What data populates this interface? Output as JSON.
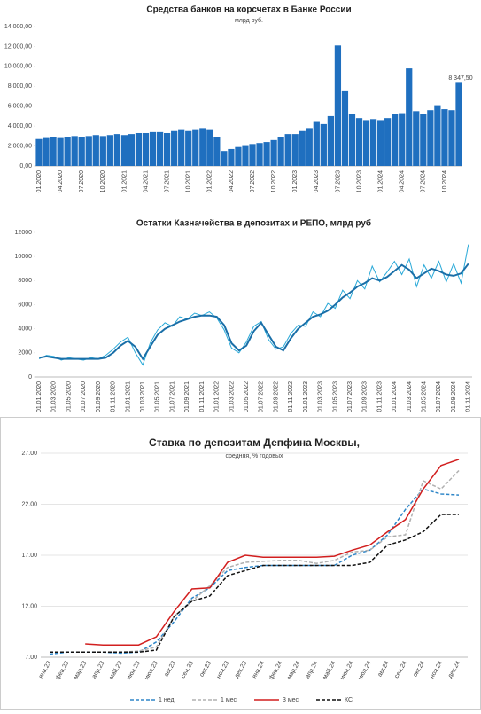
{
  "chart_data": [
    {
      "type": "bar",
      "title": "Средства банков на корсчетах в Банке России",
      "subtitle": "млрд руб.",
      "color": "#1f6fbf",
      "grid": false,
      "categories": [
        "01.2020",
        null,
        null,
        "04.2020",
        null,
        null,
        "07.2020",
        null,
        null,
        "10.2020",
        null,
        null,
        "01.2021",
        null,
        null,
        "04.2021",
        null,
        null,
        "07.2021",
        null,
        null,
        "10.2021",
        null,
        null,
        "01.2022",
        null,
        null,
        "04.2022",
        null,
        null,
        "07.2022",
        null,
        null,
        "10.2022",
        null,
        null,
        "01.2023",
        null,
        null,
        "04.2023",
        null,
        null,
        "07.2023",
        null,
        null,
        "10.2023",
        null,
        null,
        "01.2024",
        null,
        null,
        "04.2024",
        null,
        null,
        "07.2024",
        null,
        null,
        "10.2024",
        null,
        null
      ],
      "values": [
        2700,
        2800,
        2900,
        2800,
        2900,
        3000,
        2900,
        3000,
        3100,
        3000,
        3100,
        3200,
        3100,
        3200,
        3300,
        3300,
        3400,
        3400,
        3300,
        3500,
        3600,
        3500,
        3600,
        3800,
        3600,
        2900,
        1500,
        1700,
        1900,
        2000,
        2200,
        2300,
        2400,
        2600,
        2900,
        3200,
        3200,
        3500,
        3800,
        4500,
        4200,
        5000,
        12100,
        7500,
        5200,
        4800,
        4600,
        4700,
        4600,
        4800,
        5200,
        5300,
        9800,
        5500,
        5200,
        5600,
        6100,
        5700,
        5600,
        8347.5
      ],
      "value_labels": [
        null,
        null,
        null,
        null,
        null,
        null,
        null,
        null,
        null,
        null,
        null,
        null,
        null,
        null,
        null,
        null,
        null,
        null,
        null,
        null,
        null,
        null,
        null,
        null,
        null,
        null,
        null,
        null,
        null,
        null,
        null,
        null,
        null,
        null,
        null,
        null,
        null,
        null,
        null,
        null,
        null,
        null,
        null,
        null,
        null,
        null,
        null,
        null,
        null,
        null,
        null,
        null,
        null,
        null,
        null,
        null,
        null,
        null,
        null,
        "8 347,50"
      ],
      "ylim": [
        0,
        14000
      ],
      "yticks": [
        {
          "value": 0,
          "label": "0,00"
        },
        {
          "value": 2000,
          "label": "2 000,00"
        },
        {
          "value": 4000,
          "label": "4 000,00"
        },
        {
          "value": 6000,
          "label": "6 000,00"
        },
        {
          "value": 8000,
          "label": "8 000,00"
        },
        {
          "value": 10000,
          "label": "10 000,00"
        },
        {
          "value": 12000,
          "label": "12 000,00"
        },
        {
          "value": 14000,
          "label": "14 000,00"
        }
      ]
    },
    {
      "type": "line",
      "title": "Остатки Казначейства в депозитах и РЕПО, млрд руб",
      "grid": false,
      "categories": [
        "01.01.2020",
        null,
        "01.03.2020",
        null,
        "01.05.2020",
        null,
        "01.07.2020",
        null,
        "01.09.2020",
        null,
        "01.11.2020",
        null,
        "01.01.2021",
        null,
        "01.03.2021",
        null,
        "01.05.2021",
        null,
        "01.07.2021",
        null,
        "01.09.2021",
        null,
        "01.11.2021",
        null,
        "01.01.2022",
        null,
        "01.03.2022",
        null,
        "01.05.2022",
        null,
        "01.07.2022",
        null,
        "01.09.2022",
        null,
        "01.11.2022",
        null,
        "01.01.2023",
        null,
        "01.03.2023",
        null,
        "01.05.2023",
        null,
        "01.07.2023",
        null,
        "01.09.2023",
        null,
        "01.11.2023",
        null,
        "01.01.2024",
        null,
        "01.03.2024",
        null,
        "01.05.2024",
        null,
        "01.07.2024",
        null,
        "01.09.2024",
        null,
        "01.11.2024"
      ],
      "series": [
        {
          "color": "#29a9d8",
          "width": 1,
          "values": [
            1500,
            1800,
            1700,
            1400,
            1600,
            1500,
            1400,
            1600,
            1500,
            1800,
            2300,
            2900,
            3300,
            2000,
            1000,
            2800,
            3900,
            4500,
            4200,
            5000,
            4800,
            5300,
            5100,
            5400,
            4900,
            3900,
            2400,
            2000,
            2900,
            4200,
            4600,
            3100,
            2300,
            2500,
            3600,
            4300,
            4200,
            5400,
            5000,
            6100,
            5700,
            7200,
            6500,
            8000,
            7300,
            9200,
            7900,
            8700,
            9600,
            8500,
            9800,
            7500,
            9300,
            8200,
            9600,
            7900,
            9400,
            7800,
            11000
          ]
        },
        {
          "color": "#1a6fa8",
          "width": 2,
          "values": [
            1600,
            1700,
            1600,
            1500,
            1500,
            1500,
            1500,
            1500,
            1500,
            1600,
            2000,
            2600,
            3000,
            2500,
            1500,
            2500,
            3500,
            4000,
            4300,
            4600,
            4800,
            5000,
            5100,
            5100,
            5000,
            4300,
            2800,
            2200,
            2600,
            3800,
            4500,
            3500,
            2500,
            2200,
            3200,
            4000,
            4500,
            5000,
            5200,
            5500,
            6000,
            6600,
            7000,
            7500,
            7800,
            8200,
            8000,
            8300,
            8800,
            9300,
            8900,
            8200,
            8600,
            9000,
            8800,
            8500,
            8400,
            8600,
            9400
          ]
        }
      ],
      "ylim": [
        0,
        12000
      ],
      "yticks": [
        0,
        2000,
        4000,
        6000,
        8000,
        10000,
        12000
      ]
    },
    {
      "type": "line",
      "title": "Ставка по депозитам Депфина Москвы,",
      "subtitle": "средняя, % годовых",
      "grid": true,
      "categories": [
        "янв.23",
        "фев.23",
        "мар.23",
        "апр.23",
        "май.23",
        "июн.23",
        "июл.23",
        "авг.23",
        "сен.23",
        "окт.23",
        "ноя.23",
        "дек.23",
        "янв.24",
        "фев.24",
        "мар.24",
        "апр.24",
        "май.24",
        "июн.24",
        "июл.24",
        "авг.24",
        "сен.24",
        "окт.24",
        "ноя.24",
        "дек.24"
      ],
      "series": [
        {
          "name": "1 нед",
          "color": "#2e86c8",
          "dashed": true,
          "width": 1.5,
          "values": [
            7.3,
            7.5,
            7.5,
            7.5,
            7.4,
            7.5,
            8.5,
            10.5,
            12.8,
            13.8,
            15.5,
            15.8,
            16,
            16,
            16,
            16,
            16,
            17,
            17.5,
            19,
            21.5,
            23.5,
            23,
            22.9
          ]
        },
        {
          "name": "1 мес",
          "color": "#b0b0b0",
          "dashed": true,
          "width": 1.5,
          "values": [
            7.5,
            7.5,
            7.5,
            7.5,
            7.5,
            7.6,
            8,
            11,
            12.5,
            14,
            15.8,
            16.3,
            16.4,
            16.5,
            16.5,
            16.2,
            16.5,
            17.3,
            17.5,
            18.8,
            19,
            24.3,
            23.5,
            25.3
          ]
        },
        {
          "name": "3 мес",
          "color": "#d21f1f",
          "dashed": false,
          "width": 1.5,
          "values": [
            null,
            null,
            8.3,
            8.2,
            8.2,
            8.2,
            9,
            11.5,
            13.7,
            13.8,
            16.3,
            17,
            16.8,
            16.8,
            16.8,
            16.8,
            16.9,
            17.5,
            18,
            19.3,
            20.5,
            23.5,
            25.8,
            26.4
          ]
        },
        {
          "name": "КС",
          "color": "#111111",
          "dashed": true,
          "width": 1.5,
          "values": [
            7.5,
            7.5,
            7.5,
            7.5,
            7.5,
            7.5,
            7.7,
            11,
            12.5,
            13,
            15,
            15.5,
            16,
            16,
            16,
            16,
            16,
            16,
            16.3,
            18,
            18.5,
            19.3,
            21,
            21
          ]
        }
      ],
      "ylim": [
        7,
        27
      ],
      "yticks": [
        {
          "value": 7,
          "label": "7.00"
        },
        {
          "value": 12,
          "label": "12.00"
        },
        {
          "value": 17,
          "label": "17.00"
        },
        {
          "value": 22,
          "label": "22.00"
        },
        {
          "value": 27,
          "label": "27.00"
        }
      ]
    }
  ]
}
